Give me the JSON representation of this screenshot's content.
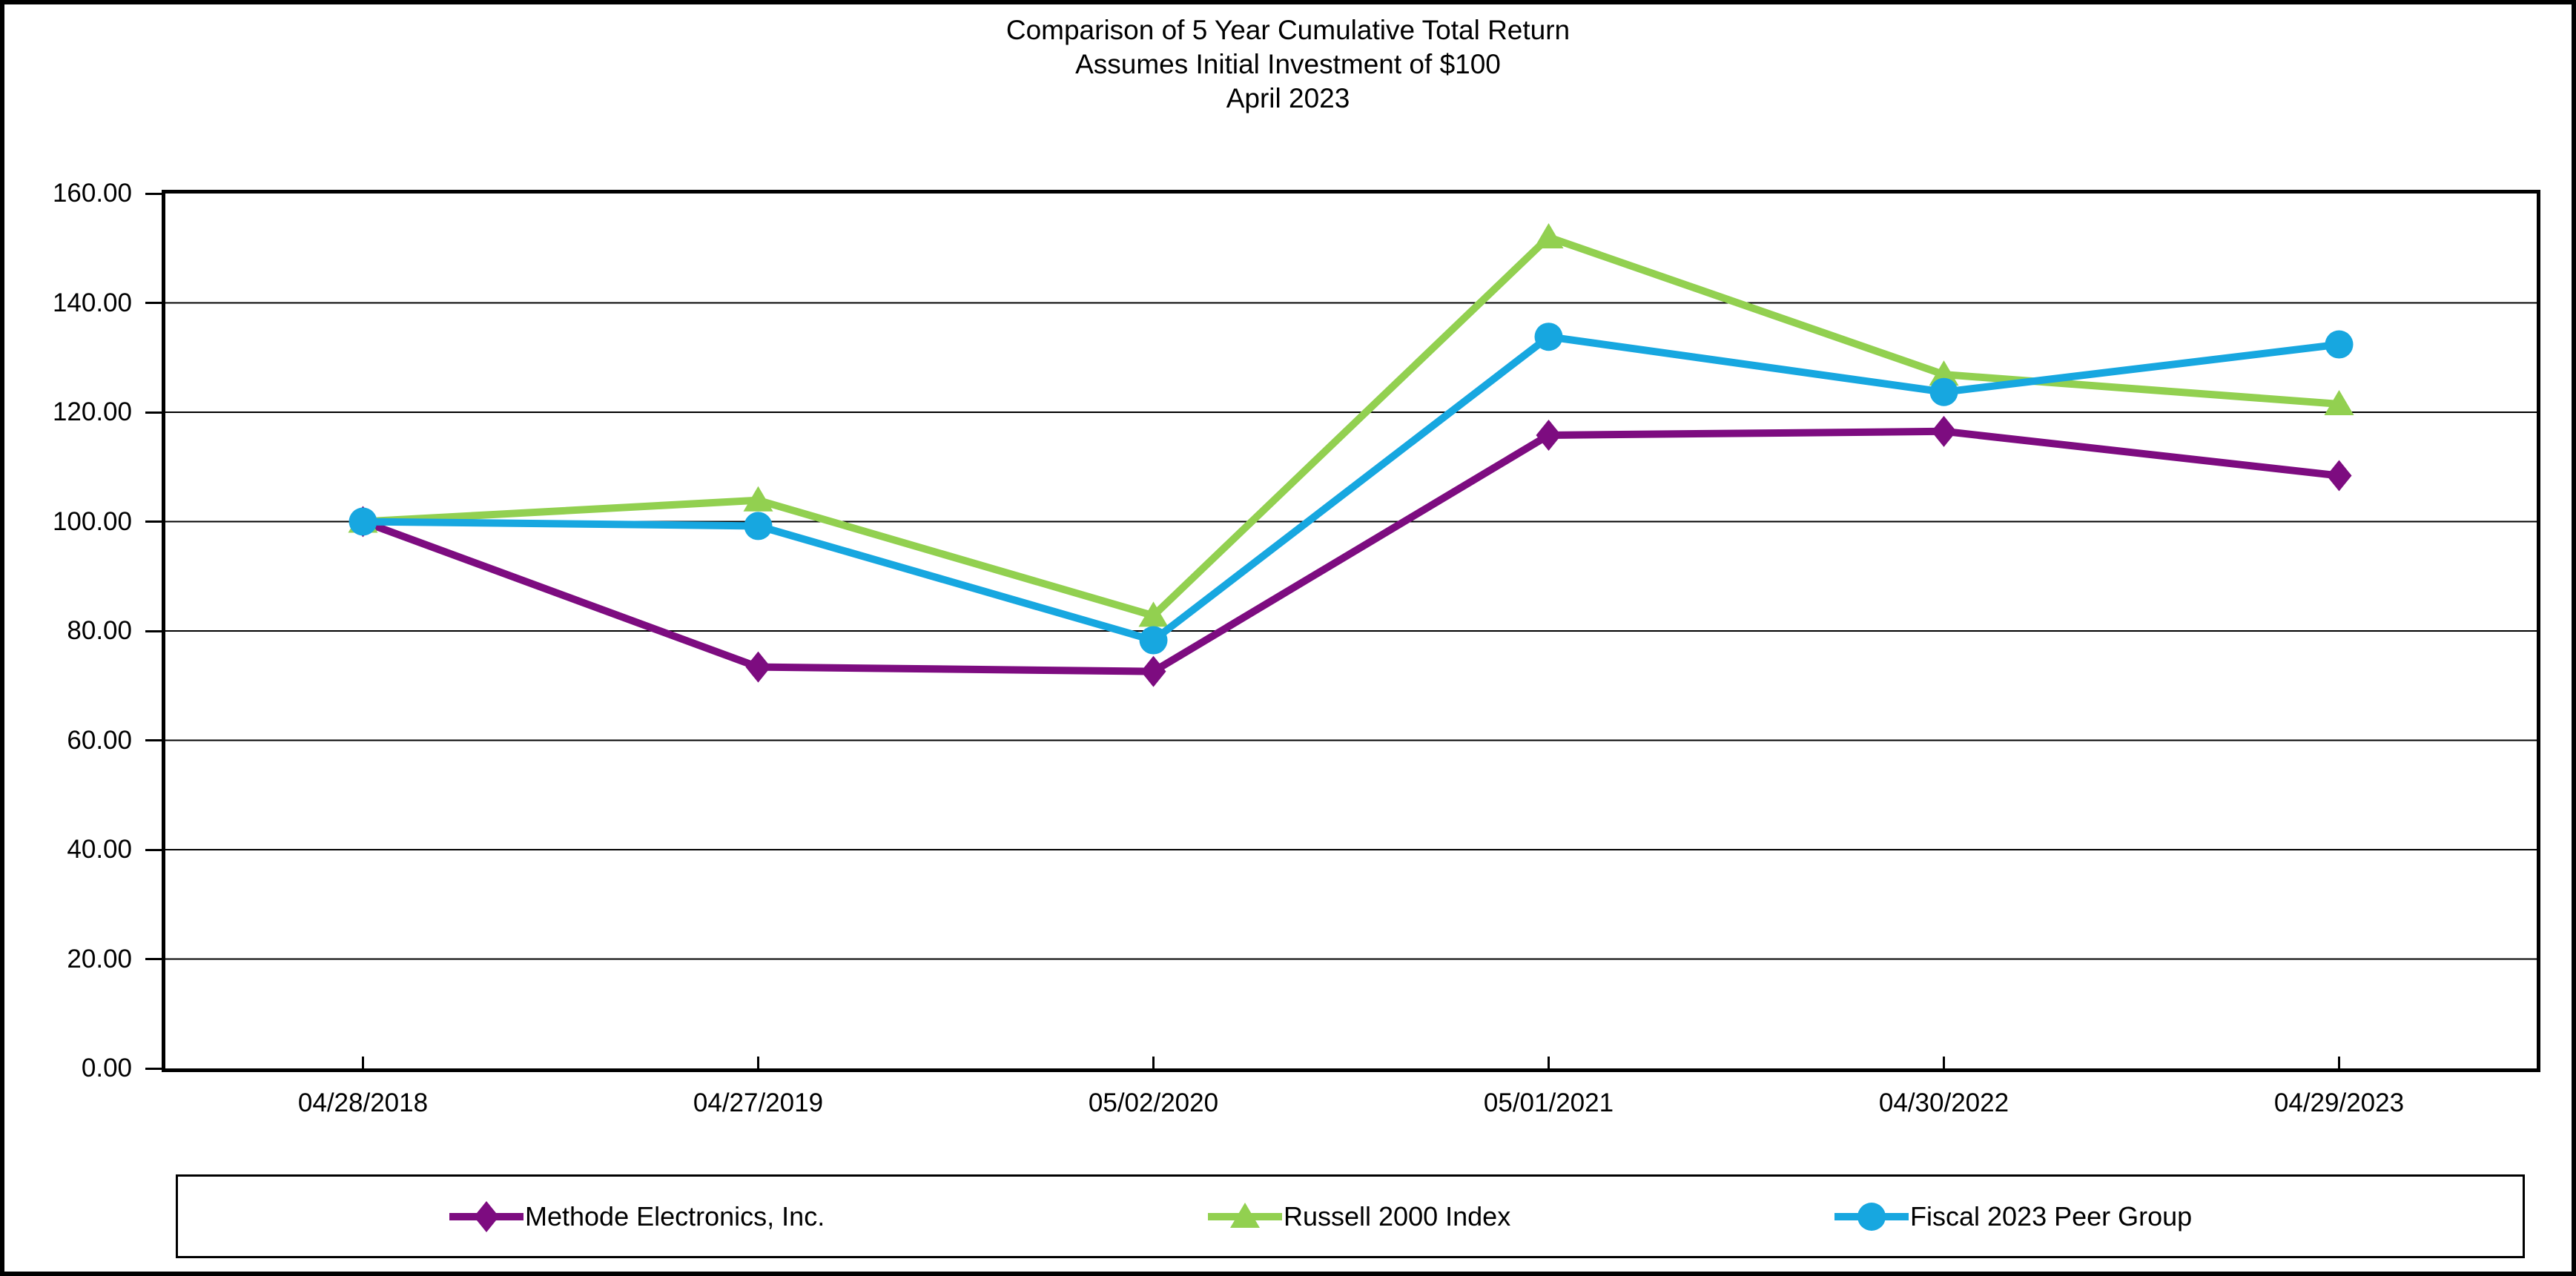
{
  "title": {
    "line1": "Comparison of 5 Year Cumulative Total Return",
    "line2": "Assumes Initial Investment of $100",
    "line3": "April 2023"
  },
  "y_axis": {
    "tick_labels_bottom_to_top": [
      "0.00",
      "20.00",
      "40.00",
      "60.00",
      "80.00",
      "100.00",
      "120.00",
      "140.00",
      "160.00"
    ]
  },
  "chart_data": {
    "type": "line",
    "title": "Comparison of 5 Year Cumulative Total Return",
    "subtitle": "Assumes Initial Investment of $100",
    "subtitle2": "April 2023",
    "categories": [
      "04/28/2018",
      "04/27/2019",
      "05/02/2020",
      "05/01/2021",
      "04/30/2022",
      "04/29/2023"
    ],
    "series": [
      {
        "name": "Methode Electronics, Inc.",
        "marker": "diamond",
        "color": "#7D0C80",
        "values": [
          100.0,
          73.4,
          72.6,
          115.8,
          116.5,
          108.4
        ]
      },
      {
        "name": "Russell 2000 Index",
        "marker": "triangle",
        "color": "#92D050",
        "values": [
          100.0,
          103.9,
          82.8,
          152.0,
          126.9,
          121.5
        ]
      },
      {
        "name": "Fiscal 2023 Peer Group",
        "marker": "circle",
        "color": "#17A7E0",
        "values": [
          100.0,
          99.2,
          78.3,
          133.8,
          123.7,
          132.4
        ]
      }
    ],
    "ylim": [
      0,
      160
    ],
    "ytick_step": 20,
    "xlabel": "",
    "ylabel": "",
    "grid": true,
    "legend_position": "bottom"
  }
}
